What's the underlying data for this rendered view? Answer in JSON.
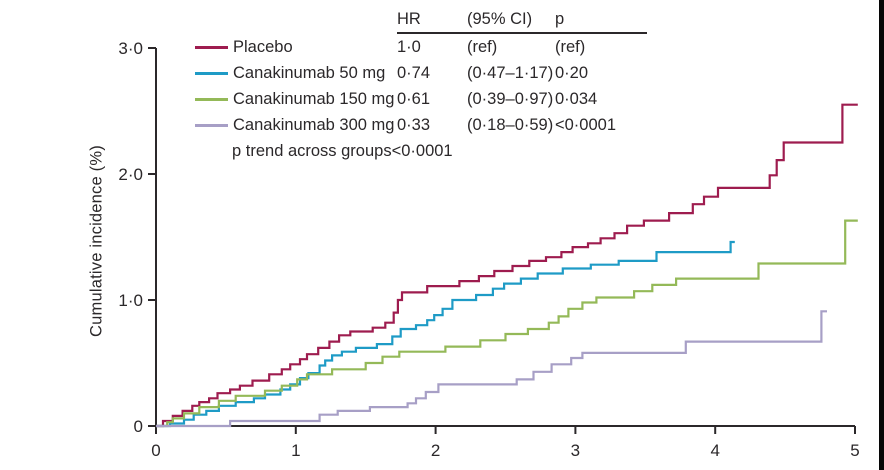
{
  "legend": {
    "header": {
      "hr": "HR",
      "ci": "(95% CI)",
      "p": "p"
    },
    "rows": [
      {
        "label": "Placebo",
        "hr": "1·0",
        "ci": "(ref)",
        "p": "(ref)",
        "color": "#9e1c4f"
      },
      {
        "label": "Canakinumab 50 mg",
        "hr": "0·74",
        "ci": "(0·47–1·17)",
        "p": "0·20",
        "color": "#1e9bc6"
      },
      {
        "label": "Canakinumab 150 mg",
        "hr": "0·61",
        "ci": "(0·39–0·97)",
        "p": "0·034",
        "color": "#94b958"
      },
      {
        "label": "Canakinumab 300 mg",
        "hr": "0·33",
        "ci": "(0·18–0·59)",
        "p": "<0·0001",
        "color": "#a79fc6"
      }
    ],
    "trend_note": "p trend across groups<0·0001"
  },
  "chart_data": {
    "type": "line",
    "subtype": "step-function-cumulative-incidence",
    "title": "",
    "xlabel": "",
    "ylabel": "Cumulative incidence (%)",
    "xlim": [
      0,
      5
    ],
    "ylim": [
      0,
      3
    ],
    "grid": false,
    "legend_position": "top-left",
    "xticks": [
      {
        "t": 0,
        "label": "0"
      },
      {
        "t": 1,
        "label": "1"
      },
      {
        "t": 2,
        "label": "2"
      },
      {
        "t": 3,
        "label": "3"
      },
      {
        "t": 4,
        "label": "4"
      },
      {
        "t": 5,
        "label": "5"
      }
    ],
    "yticks": [
      {
        "v": 0,
        "label": "0"
      },
      {
        "v": 1,
        "label": "1·0"
      },
      {
        "v": 2,
        "label": "2·0"
      },
      {
        "v": 3,
        "label": "3·0"
      }
    ],
    "series": [
      {
        "name": "Placebo",
        "slug": "placebo",
        "color": "#9e1c4f",
        "hr": "1·0",
        "ci": "(ref)",
        "p": "(ref)",
        "points": [
          [
            0,
            0
          ],
          [
            0.05,
            0.04
          ],
          [
            0.12,
            0.08
          ],
          [
            0.19,
            0.12
          ],
          [
            0.26,
            0.16
          ],
          [
            0.31,
            0.19
          ],
          [
            0.38,
            0.22
          ],
          [
            0.44,
            0.26
          ],
          [
            0.53,
            0.29
          ],
          [
            0.6,
            0.32
          ],
          [
            0.69,
            0.36
          ],
          [
            0.81,
            0.41
          ],
          [
            0.9,
            0.45
          ],
          [
            0.96,
            0.49
          ],
          [
            1.03,
            0.53
          ],
          [
            1.08,
            0.57
          ],
          [
            1.16,
            0.62
          ],
          [
            1.24,
            0.67
          ],
          [
            1.31,
            0.72
          ],
          [
            1.39,
            0.75
          ],
          [
            1.55,
            0.78
          ],
          [
            1.64,
            0.82
          ],
          [
            1.7,
            0.9
          ],
          [
            1.73,
            1.0
          ],
          [
            1.76,
            1.06
          ],
          [
            1.94,
            1.11
          ],
          [
            2.17,
            1.15
          ],
          [
            2.31,
            1.19
          ],
          [
            2.42,
            1.23
          ],
          [
            2.55,
            1.27
          ],
          [
            2.67,
            1.31
          ],
          [
            2.79,
            1.34
          ],
          [
            2.9,
            1.38
          ],
          [
            2.98,
            1.42
          ],
          [
            3.09,
            1.45
          ],
          [
            3.18,
            1.49
          ],
          [
            3.28,
            1.53
          ],
          [
            3.37,
            1.59
          ],
          [
            3.49,
            1.63
          ],
          [
            3.67,
            1.69
          ],
          [
            3.84,
            1.76
          ],
          [
            3.92,
            1.82
          ],
          [
            4.02,
            1.89
          ],
          [
            4.39,
            1.99
          ],
          [
            4.44,
            2.11
          ],
          [
            4.49,
            2.25
          ],
          [
            4.91,
            2.55
          ],
          [
            5.02,
            2.55
          ]
        ]
      },
      {
        "name": "Canakinumab 50 mg",
        "slug": "canakinumab-50mg",
        "color": "#1e9bc6",
        "hr": "0·74",
        "ci": "(0·47–1·17)",
        "p": "0·20",
        "points": [
          [
            0,
            0
          ],
          [
            0.1,
            0.02
          ],
          [
            0.2,
            0.05
          ],
          [
            0.27,
            0.09
          ],
          [
            0.36,
            0.12
          ],
          [
            0.45,
            0.16
          ],
          [
            0.57,
            0.19
          ],
          [
            0.7,
            0.22
          ],
          [
            0.78,
            0.25
          ],
          [
            0.89,
            0.29
          ],
          [
            0.96,
            0.33
          ],
          [
            1.03,
            0.38
          ],
          [
            1.09,
            0.42
          ],
          [
            1.17,
            0.48
          ],
          [
            1.21,
            0.52
          ],
          [
            1.26,
            0.56
          ],
          [
            1.33,
            0.59
          ],
          [
            1.43,
            0.62
          ],
          [
            1.58,
            0.65
          ],
          [
            1.69,
            0.71
          ],
          [
            1.75,
            0.77
          ],
          [
            1.86,
            0.8
          ],
          [
            1.94,
            0.84
          ],
          [
            1.99,
            0.88
          ],
          [
            2.05,
            0.93
          ],
          [
            2.12,
            1.0
          ],
          [
            2.29,
            1.04
          ],
          [
            2.41,
            1.09
          ],
          [
            2.49,
            1.13
          ],
          [
            2.61,
            1.17
          ],
          [
            2.73,
            1.21
          ],
          [
            2.91,
            1.25
          ],
          [
            3.11,
            1.28
          ],
          [
            3.31,
            1.31
          ],
          [
            3.58,
            1.38
          ],
          [
            4.11,
            1.46
          ],
          [
            4.14,
            1.46
          ]
        ]
      },
      {
        "name": "Canakinumab 150 mg",
        "slug": "canakinumab-150mg",
        "color": "#94b958",
        "hr": "0·61",
        "ci": "(0·39–0·97)",
        "p": "0·034",
        "points": [
          [
            0,
            0
          ],
          [
            0.08,
            0.03
          ],
          [
            0.12,
            0.06
          ],
          [
            0.2,
            0.1
          ],
          [
            0.31,
            0.15
          ],
          [
            0.45,
            0.2
          ],
          [
            0.57,
            0.24
          ],
          [
            0.78,
            0.28
          ],
          [
            0.9,
            0.32
          ],
          [
            1.01,
            0.37
          ],
          [
            1.08,
            0.41
          ],
          [
            1.26,
            0.45
          ],
          [
            1.5,
            0.5
          ],
          [
            1.62,
            0.55
          ],
          [
            1.74,
            0.59
          ],
          [
            2.07,
            0.63
          ],
          [
            2.32,
            0.68
          ],
          [
            2.5,
            0.73
          ],
          [
            2.66,
            0.77
          ],
          [
            2.81,
            0.82
          ],
          [
            2.88,
            0.87
          ],
          [
            2.95,
            0.93
          ],
          [
            3.05,
            0.98
          ],
          [
            3.15,
            1.02
          ],
          [
            3.42,
            1.07
          ],
          [
            3.55,
            1.12
          ],
          [
            3.72,
            1.17
          ],
          [
            4.31,
            1.29
          ],
          [
            4.93,
            1.63
          ],
          [
            5.02,
            1.63
          ]
        ]
      },
      {
        "name": "Canakinumab 300 mg",
        "slug": "canakinumab-300mg",
        "color": "#a79fc6",
        "hr": "0·33",
        "ci": "(0·18–0·59)",
        "p": "<0·0001",
        "points": [
          [
            0,
            0
          ],
          [
            0.53,
            0.04
          ],
          [
            1.17,
            0.09
          ],
          [
            1.3,
            0.12
          ],
          [
            1.53,
            0.15
          ],
          [
            1.8,
            0.18
          ],
          [
            1.86,
            0.22
          ],
          [
            1.93,
            0.27
          ],
          [
            2.02,
            0.33
          ],
          [
            2.58,
            0.37
          ],
          [
            2.7,
            0.43
          ],
          [
            2.83,
            0.49
          ],
          [
            2.97,
            0.54
          ],
          [
            3.05,
            0.58
          ],
          [
            3.79,
            0.67
          ],
          [
            4.76,
            0.91
          ],
          [
            4.8,
            0.91
          ]
        ]
      }
    ]
  }
}
